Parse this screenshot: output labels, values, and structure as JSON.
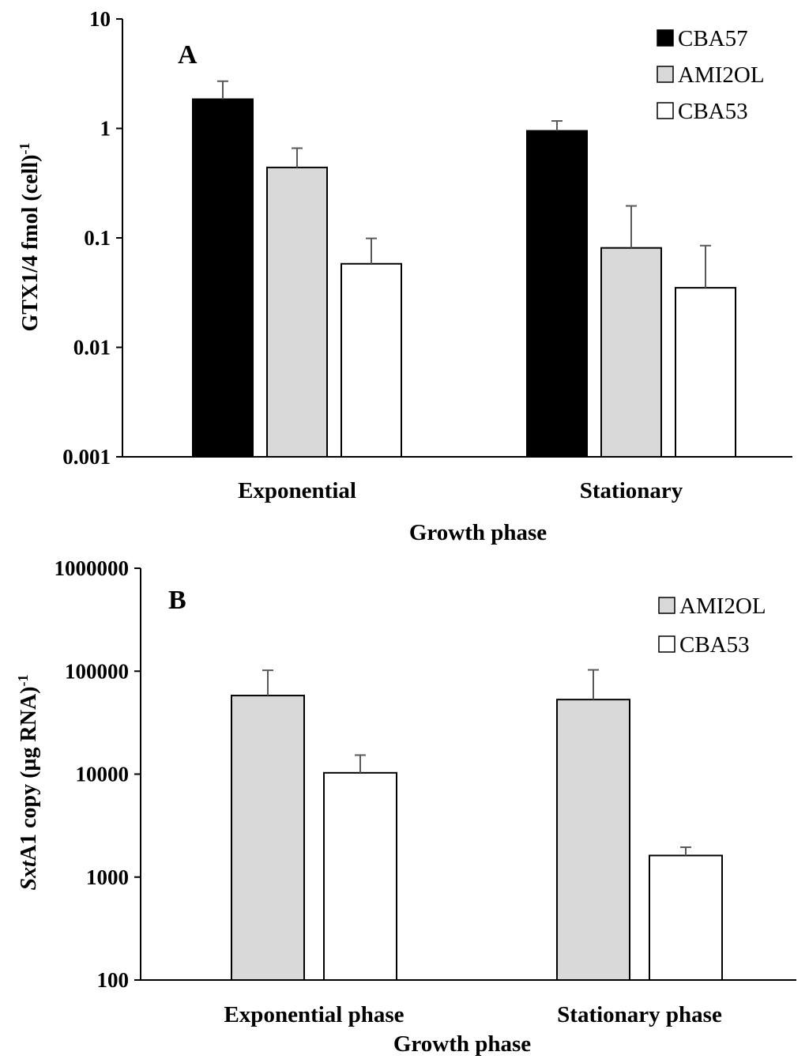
{
  "chart_data": [
    {
      "type": "bar",
      "panel_letter": "A",
      "title": "",
      "categories": [
        "Exponential",
        "Stationary"
      ],
      "series": [
        {
          "name": "CBA57",
          "values": [
            1.85,
            0.95
          ],
          "errors": [
            0.85,
            0.22
          ],
          "color": "#000000"
        },
        {
          "name": "AMI2OL",
          "values": [
            0.44,
            0.081
          ],
          "errors": [
            0.22,
            0.115
          ],
          "color": "#d9d9d9"
        },
        {
          "name": "CBA53",
          "values": [
            0.058,
            0.035
          ],
          "errors": [
            0.041,
            0.05
          ],
          "color": "#ffffff"
        }
      ],
      "xlabel": "Growth phase",
      "ylabel_main": "GTX1/4 fmol (cell)",
      "ylabel_sup": "-1",
      "yscale": "log",
      "ylim": [
        0.001,
        10
      ],
      "ytick_values": [
        0.001,
        0.01,
        0.1,
        1,
        10
      ],
      "ytick_labels": [
        "0.001",
        "0.01",
        "0.1",
        "1",
        "10"
      ],
      "legend_position": "top-right",
      "grid": false
    },
    {
      "type": "bar",
      "panel_letter": "B",
      "title": "",
      "categories": [
        "Exponential phase",
        "Stationary phase"
      ],
      "series": [
        {
          "name": "AMI2OL",
          "values": [
            58000,
            53000
          ],
          "errors": [
            44000,
            50000
          ],
          "color": "#d9d9d9"
        },
        {
          "name": "CBA53",
          "values": [
            10300,
            1620
          ],
          "errors": [
            5000,
            330
          ],
          "color": "#ffffff"
        }
      ],
      "xlabel": "Growth phase",
      "ylabel_italic": "Sxt",
      "ylabel_main": "A1 copy (µg RNA)",
      "ylabel_sup": "-1",
      "yscale": "log",
      "ylim": [
        100,
        1000000
      ],
      "ytick_values": [
        100,
        1000,
        10000,
        100000,
        1000000
      ],
      "ytick_labels": [
        "100",
        "1000",
        "10000",
        "100000",
        "1000000"
      ],
      "legend_position": "top-right",
      "grid": false
    }
  ]
}
